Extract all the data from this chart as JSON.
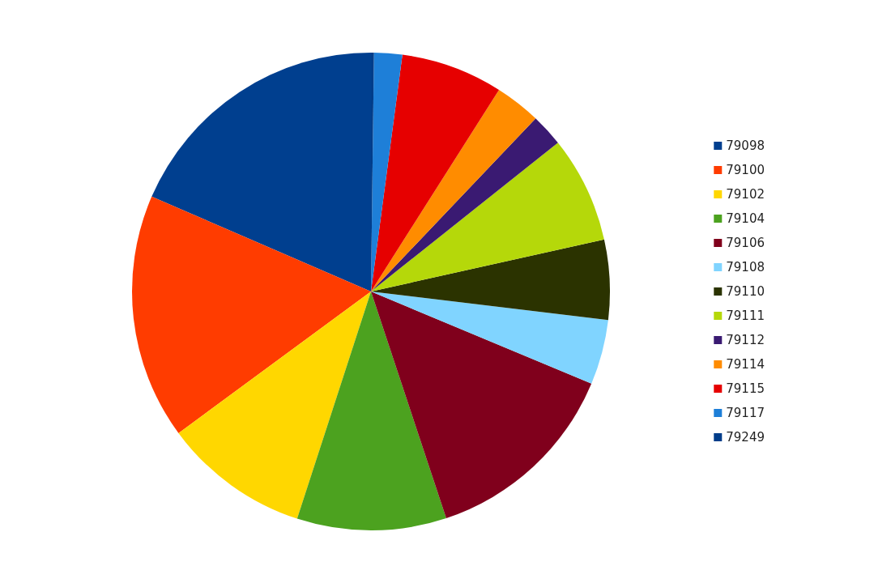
{
  "chart_data": {
    "type": "pie",
    "categories": [
      "79098",
      "79100",
      "79102",
      "79104",
      "79106",
      "79108",
      "79110",
      "79111",
      "79112",
      "79114",
      "79115",
      "79117",
      "79249"
    ],
    "values": [
      18.5,
      16.6,
      9.9,
      10.1,
      13.6,
      4.4,
      5.4,
      7.2,
      2.2,
      3.1,
      6.9,
      1.9,
      0.2
    ],
    "colors": [
      "#003f8f",
      "#ff3c00",
      "#ffd700",
      "#4ca21f",
      "#80001c",
      "#80d4ff",
      "#2b3300",
      "#b5d80a",
      "#3a1a72",
      "#ff8c00",
      "#e60000",
      "#1e7fd8",
      "#003d8a"
    ],
    "legend": "right"
  }
}
